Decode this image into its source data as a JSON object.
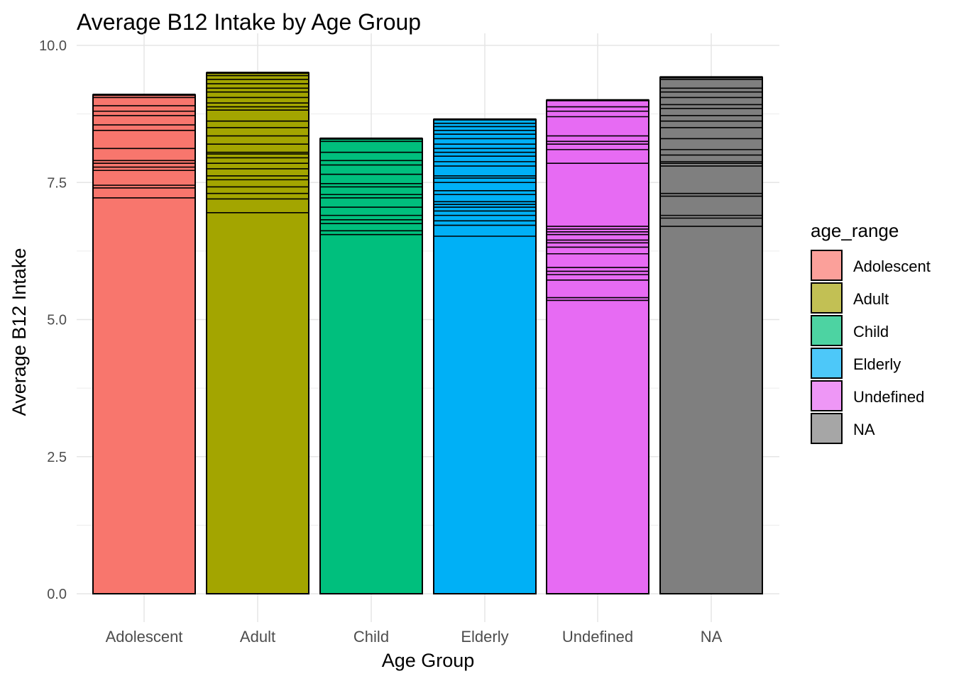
{
  "chart_data": {
    "type": "bar",
    "title": "Average B12 Intake by Age Group",
    "xlabel": "Age Group",
    "ylabel": "Average B12 Intake",
    "categories": [
      "Adolescent",
      "Adult",
      "Child",
      "Elderly",
      "Undefined",
      "NA"
    ],
    "values": [
      9.1,
      9.5,
      8.3,
      8.65,
      9.0,
      9.42
    ],
    "ylim": [
      0,
      10
    ],
    "yticks": [
      "0.0",
      "2.5",
      "5.0",
      "7.5",
      "10.0"
    ],
    "grid": true,
    "legend": {
      "title": "age_range",
      "placement": "right",
      "entries": [
        "Adolescent",
        "Adult",
        "Child",
        "Elderly",
        "Undefined",
        "NA"
      ]
    },
    "colors": [
      "#F8766D",
      "#A3A500",
      "#00BF7D",
      "#00B0F6",
      "#E76BF3",
      "#7F7F7F"
    ],
    "stack_boundaries": [
      [
        7.22,
        7.4,
        7.45,
        7.72,
        7.78,
        7.85,
        7.9,
        8.12,
        8.45,
        8.55,
        8.72,
        8.8,
        8.9,
        9.05
      ],
      [
        6.95,
        7.2,
        7.3,
        7.42,
        7.55,
        7.62,
        7.75,
        7.85,
        7.95,
        8.02,
        8.05,
        8.2,
        8.35,
        8.5,
        8.62,
        8.82,
        8.88,
        8.95,
        9.05,
        9.15,
        9.22,
        9.3,
        9.38,
        9.45
      ],
      [
        6.55,
        6.62,
        6.75,
        6.82,
        6.9,
        7.05,
        7.22,
        7.28,
        7.42,
        7.48,
        7.65,
        7.82,
        7.9,
        8.05,
        8.25
      ],
      [
        6.52,
        6.72,
        6.8,
        6.9,
        6.98,
        7.05,
        7.1,
        7.15,
        7.28,
        7.35,
        7.5,
        7.58,
        7.62,
        7.8,
        7.88,
        7.98,
        8.05,
        8.12,
        8.2,
        8.3,
        8.38,
        8.45,
        8.52,
        8.58
      ],
      [
        5.35,
        5.4,
        5.72,
        5.82,
        5.88,
        5.95,
        6.2,
        6.32,
        6.4,
        6.45,
        6.55,
        6.6,
        6.65,
        6.7,
        7.85,
        8.1,
        8.2,
        8.25,
        8.35,
        8.7,
        8.8,
        8.88
      ],
      [
        6.7,
        6.85,
        6.9,
        7.25,
        7.3,
        7.8,
        7.85,
        7.88,
        8.0,
        8.1,
        8.3,
        8.5,
        8.62,
        8.72,
        8.85,
        8.92,
        9.05,
        9.15,
        9.22,
        9.38
      ]
    ]
  }
}
